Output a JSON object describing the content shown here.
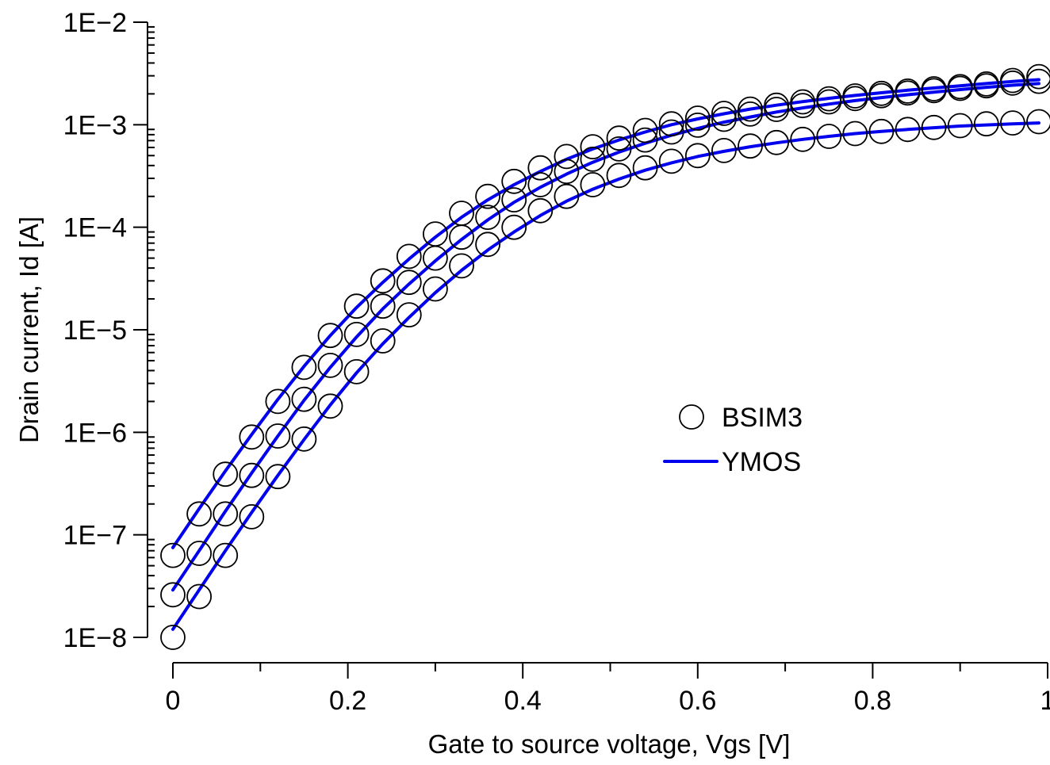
{
  "chart_data": {
    "type": "scatter",
    "title": "",
    "xlabel": "Gate to source voltage, Vgs [V]",
    "ylabel": "Drain current, Id [A]",
    "xlim": [
      0,
      1
    ],
    "ylim": [
      1e-08,
      0.01
    ],
    "yscale": "log",
    "x_ticks": [
      0,
      0.2,
      0.4,
      0.6,
      0.8,
      1
    ],
    "x_tick_labels": [
      "0",
      "0.2",
      "0.4",
      "0.6",
      "0.8",
      "1"
    ],
    "x_minor_step": 0.1,
    "y_ticks": [
      1e-08,
      1e-07,
      1e-06,
      1e-05,
      0.0001,
      0.001,
      0.01
    ],
    "y_tick_labels": [
      "1E−8",
      "1E−7",
      "1E−6",
      "1E−5",
      "1E−4",
      "1E−3",
      "1E−2"
    ],
    "grid": false,
    "legend_position": "center-right",
    "legend": [
      {
        "label": "BSIM3",
        "marker": "open-circle"
      },
      {
        "label": "YMOS",
        "marker": "line",
        "color": "#0000ee"
      }
    ],
    "x": [
      0,
      0.03,
      0.06,
      0.09,
      0.12,
      0.15,
      0.18,
      0.21,
      0.24,
      0.27,
      0.3,
      0.33,
      0.36,
      0.39,
      0.42,
      0.45,
      0.48,
      0.51,
      0.54,
      0.57,
      0.6,
      0.63,
      0.66,
      0.69,
      0.72,
      0.75,
      0.78,
      0.81,
      0.84,
      0.87,
      0.9,
      0.93,
      0.96,
      0.99
    ],
    "series": [
      {
        "name": "BSIM3",
        "style": "markers",
        "curves": [
          [
            6.3e-08,
            1.6e-07,
            3.9e-07,
            9e-07,
            2e-06,
            4.3e-06,
            8.8e-06,
            1.7e-05,
            3e-05,
            5.2e-05,
            8.6e-05,
            0.000137,
            0.0002,
            0.00028,
            0.00038,
            0.00049,
            0.00061,
            0.00074,
            0.00088,
            0.00102,
            0.00116,
            0.00129,
            0.00142,
            0.00155,
            0.00167,
            0.00179,
            0.00191,
            0.00202,
            0.00213,
            0.00224,
            0.00235,
            0.0025,
            0.0027,
            0.00295
          ],
          [
            2.6e-08,
            6.6e-08,
            1.6e-07,
            3.8e-07,
            9.2e-07,
            2.1e-06,
            4.5e-06,
            9e-06,
            1.7e-05,
            2.9e-05,
            5e-05,
            8e-05,
            0.000125,
            0.000185,
            0.00026,
            0.00035,
            0.00046,
            0.00058,
            0.00071,
            0.00085,
            0.00099,
            0.00113,
            0.00127,
            0.00141,
            0.00154,
            0.00167,
            0.0018,
            0.00192,
            0.00204,
            0.00215,
            0.00226,
            0.0024,
            0.00255,
            0.00265
          ],
          [
            1e-08,
            2.5e-08,
            6.3e-08,
            1.5e-07,
            3.7e-07,
            8.6e-07,
            1.8e-06,
            3.9e-06,
            7.8e-06,
            1.4e-05,
            2.5e-05,
            4.2e-05,
            6.8e-05,
            0.0001,
            0.000145,
            0.0002,
            0.00026,
            0.00032,
            0.00038,
            0.00044,
            0.0005,
            0.00056,
            0.00062,
            0.00067,
            0.00072,
            0.00077,
            0.00082,
            0.00086,
            0.0009,
            0.00094,
            0.00098,
            0.00102,
            0.00104,
            0.00107
          ]
        ]
      },
      {
        "name": "YMOS",
        "style": "line",
        "color": "#0000ee",
        "curves": [
          [
            7.5e-08,
            1.8e-07,
            4.2e-07,
            9.5e-07,
            2.1e-06,
            4.4e-06,
            8.8e-06,
            1.65e-05,
            2.9e-05,
            4.9e-05,
            8e-05,
            0.000125,
            0.000185,
            0.00026,
            0.00035,
            0.00046,
            0.00058,
            0.00071,
            0.00085,
            0.001,
            0.00114,
            0.00128,
            0.00142,
            0.00155,
            0.00168,
            0.00181,
            0.00193,
            0.00205,
            0.00217,
            0.00228,
            0.0024,
            0.00252,
            0.00264,
            0.00275
          ],
          [
            2.9e-08,
            7e-08,
            1.7e-07,
            4e-07,
            9.2e-07,
            2.05e-06,
            4.3e-06,
            8.5e-06,
            1.6e-05,
            2.8e-05,
            4.7e-05,
            7.6e-05,
            0.000118,
            0.000175,
            0.000245,
            0.00033,
            0.00043,
            0.00054,
            0.00066,
            0.00079,
            0.00092,
            0.00106,
            0.00119,
            0.00133,
            0.00146,
            0.00159,
            0.00172,
            0.00184,
            0.00196,
            0.00208,
            0.0022,
            0.00232,
            0.00243,
            0.00252
          ],
          [
            1.2e-08,
            2.9e-08,
            7e-08,
            1.65e-07,
            3.8e-07,
            8.5e-07,
            1.85e-06,
            3.8e-06,
            7.3e-06,
            1.32e-05,
            2.3e-05,
            3.8e-05,
            6e-05,
            9e-05,
            0.00013,
            0.00018,
            0.000235,
            0.000295,
            0.00036,
            0.000425,
            0.00049,
            0.00055,
            0.00061,
            0.000665,
            0.00072,
            0.00077,
            0.00082,
            0.00086,
            0.0009,
            0.000935,
            0.00097,
            0.000995,
            0.00102,
            0.00104
          ]
        ]
      }
    ]
  }
}
